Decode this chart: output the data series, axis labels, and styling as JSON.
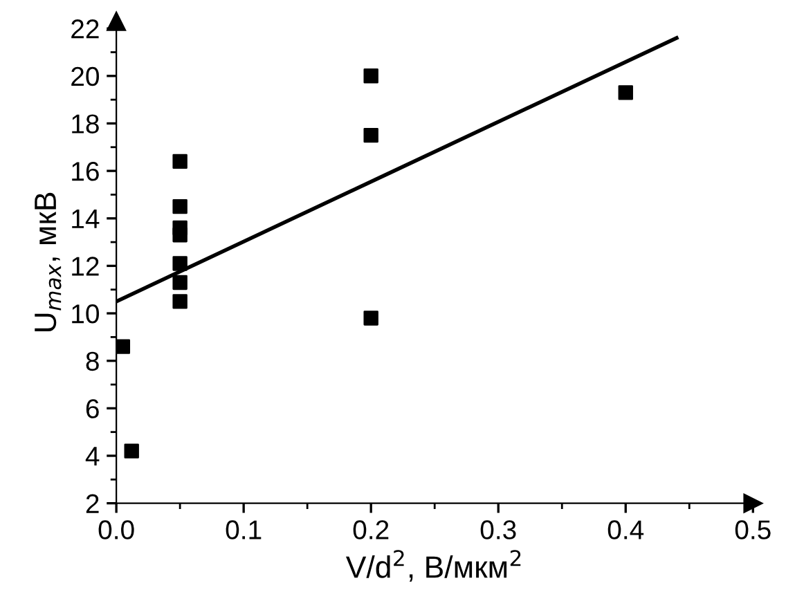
{
  "chart_data": {
    "type": "scatter",
    "xlabel": "V/d$^{2}$, В/мкм$^{2}$",
    "ylabel": "U$_{max}$, мкВ",
    "series": [
      {
        "marker": "square",
        "color": "#000000",
        "x": [
          0.005,
          0.012,
          0.05,
          0.05,
          0.05,
          0.05,
          0.05,
          0.05,
          0.05,
          0.2,
          0.2,
          0.2,
          0.4
        ],
        "values": [
          8.6,
          4.2,
          16.4,
          14.5,
          13.6,
          13.3,
          12.1,
          11.3,
          10.5,
          20.0,
          17.5,
          9.8,
          19.3
        ]
      },
      {
        "type": "line",
        "color": "#000000",
        "x": [
          0.0,
          0.44
        ],
        "values": [
          10.5,
          21.6
        ]
      }
    ],
    "xlim": [
      0,
      0.5
    ],
    "ylim": [
      2,
      22.3
    ],
    "xticks": [
      {
        "value": 0,
        "label": "0.0"
      },
      0.1,
      0.2,
      0.3,
      0.4,
      0.5
    ],
    "yticks": [
      2,
      4,
      6,
      8,
      10,
      12,
      14,
      16,
      18,
      20,
      22
    ]
  }
}
